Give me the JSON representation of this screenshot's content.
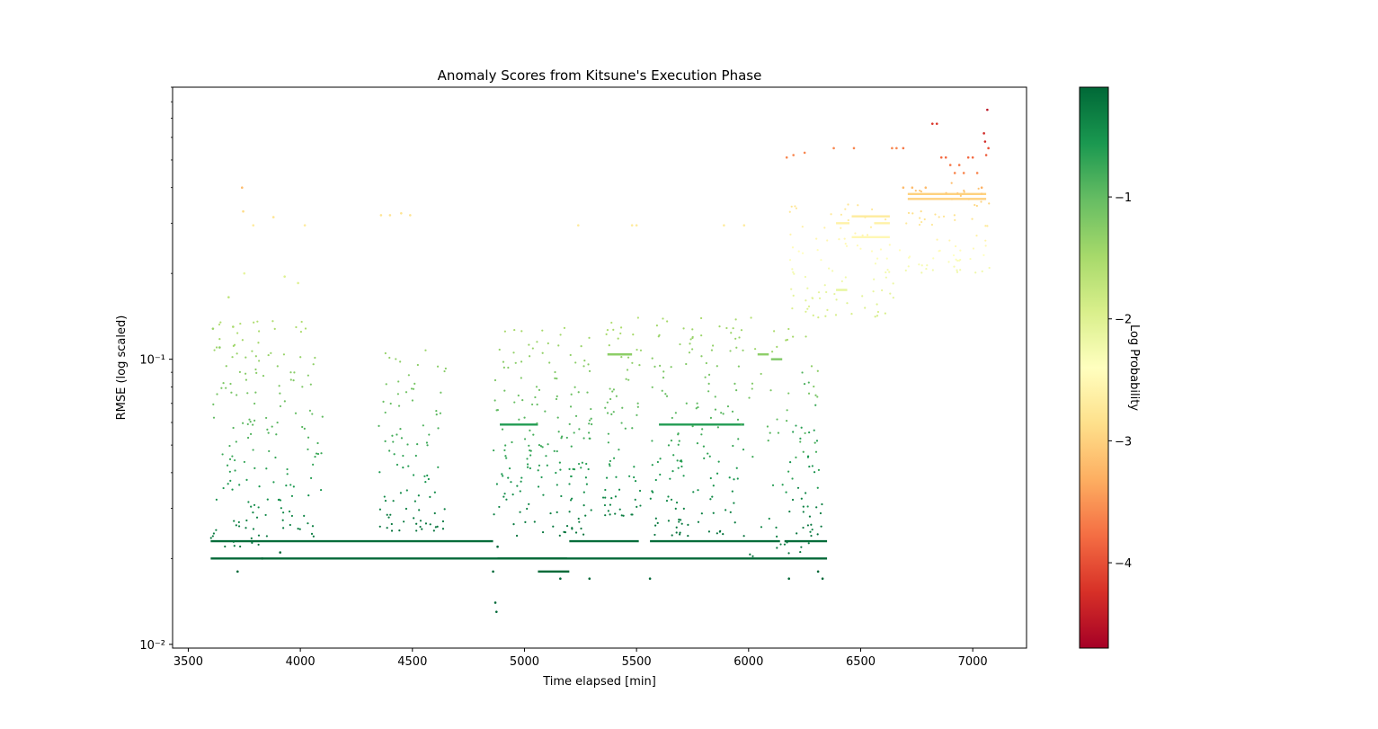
{
  "chart_data": {
    "type": "scatter",
    "title": "Anomaly Scores from Kitsune's Execution Phase",
    "xlabel": "Time elapsed [min]",
    "ylabel": "RMSE (log scaled)",
    "xlim": [
      3430,
      7240
    ],
    "ylim": [
      0.0097,
      0.9
    ],
    "yscale": "log",
    "x_ticks": [
      3500,
      4000,
      4500,
      5000,
      5500,
      6000,
      6500,
      7000
    ],
    "x_tick_labels": [
      "3500",
      "4000",
      "4500",
      "5000",
      "5500",
      "6000",
      "6500",
      "7000"
    ],
    "y_ticks": [
      0.01,
      0.1
    ],
    "y_tick_labels": [
      "10⁻²",
      "10⁻¹"
    ],
    "colorbar": {
      "label": "Log Probability",
      "colormap": "RdYlGn",
      "range": [
        -4.7,
        -0.1
      ],
      "ticks": [
        -1,
        -2,
        -3,
        -4
      ],
      "tick_labels": [
        "−1",
        "−2",
        "−3",
        "−4"
      ]
    },
    "segments": [
      {
        "x": [
          3600,
          4860
        ],
        "y": 0.023,
        "logp": -0.15
      },
      {
        "x": [
          3600,
          6350
        ],
        "y": 0.02,
        "logp": -0.1
      },
      {
        "x": [
          4880,
          5190
        ],
        "y": 0.02,
        "logp": -0.1
      },
      {
        "x": [
          5060,
          5200
        ],
        "y": 0.018,
        "logp": -0.12
      },
      {
        "x": [
          5200,
          5510
        ],
        "y": 0.023,
        "logp": -0.15
      },
      {
        "x": [
          5560,
          6140
        ],
        "y": 0.023,
        "logp": -0.15
      },
      {
        "x": [
          6160,
          6350
        ],
        "y": 0.023,
        "logp": -0.15
      },
      {
        "x": [
          4890,
          5060
        ],
        "y": 0.059,
        "logp": -0.6
      },
      {
        "x": [
          5600,
          5980
        ],
        "y": 0.059,
        "logp": -0.6
      },
      {
        "x": [
          5370,
          5480
        ],
        "y": 0.104,
        "logp": -1.3
      },
      {
        "x": [
          6040,
          6090
        ],
        "y": 0.104,
        "logp": -1.3
      },
      {
        "x": [
          6100,
          6150
        ],
        "y": 0.1,
        "logp": -1.2
      },
      {
        "x": [
          6390,
          6450
        ],
        "y": 0.3,
        "logp": -2.6
      },
      {
        "x": [
          6460,
          6630
        ],
        "y": 0.317,
        "logp": -2.7
      },
      {
        "x": [
          6460,
          6630
        ],
        "y": 0.268,
        "logp": -2.5
      },
      {
        "x": [
          6560,
          6630
        ],
        "y": 0.3,
        "logp": -2.6
      },
      {
        "x": [
          6390,
          6440
        ],
        "y": 0.175,
        "logp": -2.1
      },
      {
        "x": [
          6710,
          7060
        ],
        "y": 0.38,
        "logp": -3.0
      },
      {
        "x": [
          6710,
          7060
        ],
        "y": 0.365,
        "logp": -3.0
      }
    ],
    "clusters": [
      {
        "x": [
          3600,
          4100
        ],
        "y": [
          0.022,
          0.14
        ],
        "n": 170,
        "logp": [
          -0.2,
          -1.6
        ]
      },
      {
        "x": [
          4350,
          4650
        ],
        "y": [
          0.025,
          0.11
        ],
        "n": 90,
        "logp": [
          -0.2,
          -1.4
        ]
      },
      {
        "x": [
          4860,
          5300
        ],
        "y": [
          0.024,
          0.13
        ],
        "n": 170,
        "logp": [
          -0.2,
          -1.5
        ]
      },
      {
        "x": [
          5350,
          5520
        ],
        "y": [
          0.028,
          0.14
        ],
        "n": 70,
        "logp": [
          -0.3,
          -1.6
        ]
      },
      {
        "x": [
          5560,
          5980
        ],
        "y": [
          0.024,
          0.14
        ],
        "n": 150,
        "logp": [
          -0.2,
          -1.5
        ]
      },
      {
        "x": [
          6000,
          6320
        ],
        "y": [
          0.02,
          0.14
        ],
        "n": 60,
        "logp": [
          -0.2,
          -1.6
        ]
      },
      {
        "x": [
          6180,
          6330
        ],
        "y": [
          0.024,
          0.09
        ],
        "n": 35,
        "logp": [
          -0.2,
          -0.9
        ]
      },
      {
        "x": [
          6180,
          6680
        ],
        "y": [
          0.14,
          0.35
        ],
        "n": 90,
        "logp": [
          -1.9,
          -2.8
        ]
      },
      {
        "x": [
          6700,
          7080
        ],
        "y": [
          0.2,
          0.42
        ],
        "n": 70,
        "logp": [
          -2.2,
          -3.2
        ]
      }
    ],
    "points": [
      [
        3610,
        0.128,
        -1.4
      ],
      [
        3640,
        0.11,
        -1.3
      ],
      [
        3680,
        0.165,
        -1.7
      ],
      [
        3700,
        0.13,
        -1.5
      ],
      [
        3740,
        0.4,
        -3.2
      ],
      [
        3745,
        0.33,
        -2.9
      ],
      [
        3750,
        0.2,
        -2.1
      ],
      [
        3790,
        0.295,
        -2.7
      ],
      [
        3880,
        0.315,
        -2.8
      ],
      [
        3930,
        0.195,
        -2.0
      ],
      [
        3990,
        0.185,
        -2.0
      ],
      [
        4020,
        0.295,
        -2.7
      ],
      [
        4360,
        0.32,
        -2.8
      ],
      [
        4400,
        0.32,
        -2.8
      ],
      [
        4450,
        0.325,
        -2.8
      ],
      [
        4490,
        0.32,
        -2.8
      ],
      [
        5240,
        0.295,
        -2.7
      ],
      [
        5480,
        0.295,
        -2.7
      ],
      [
        5500,
        0.295,
        -2.7
      ],
      [
        5890,
        0.295,
        -2.7
      ],
      [
        5980,
        0.295,
        -2.7
      ],
      [
        6170,
        0.51,
        -3.6
      ],
      [
        6200,
        0.52,
        -3.6
      ],
      [
        6250,
        0.53,
        -3.6
      ],
      [
        6380,
        0.55,
        -3.6
      ],
      [
        6470,
        0.55,
        -3.6
      ],
      [
        6640,
        0.55,
        -3.6
      ],
      [
        6660,
        0.55,
        -3.6
      ],
      [
        6690,
        0.55,
        -3.7
      ],
      [
        6690,
        0.4,
        -3.2
      ],
      [
        6730,
        0.4,
        -3.2
      ],
      [
        6790,
        0.4,
        -3.2
      ],
      [
        6820,
        0.67,
        -4.2
      ],
      [
        6840,
        0.67,
        -4.2
      ],
      [
        6860,
        0.51,
        -3.8
      ],
      [
        6880,
        0.51,
        -3.8
      ],
      [
        6900,
        0.48,
        -3.7
      ],
      [
        6920,
        0.45,
        -3.6
      ],
      [
        6940,
        0.48,
        -3.7
      ],
      [
        6960,
        0.45,
        -3.6
      ],
      [
        6980,
        0.51,
        -3.8
      ],
      [
        7000,
        0.51,
        -3.8
      ],
      [
        7020,
        0.45,
        -3.6
      ],
      [
        7040,
        0.4,
        -3.3
      ],
      [
        7050,
        0.62,
        -4.3
      ],
      [
        7055,
        0.58,
        -4.3
      ],
      [
        7060,
        0.52,
        -3.9
      ],
      [
        7065,
        0.75,
        -4.5
      ],
      [
        7070,
        0.55,
        -4.0
      ],
      [
        4870,
        0.014,
        -0.1
      ],
      [
        4875,
        0.013,
        -0.1
      ],
      [
        5160,
        0.017,
        -0.1
      ],
      [
        5290,
        0.017,
        -0.1
      ],
      [
        5560,
        0.017,
        -0.1
      ],
      [
        6180,
        0.017,
        -0.1
      ],
      [
        6330,
        0.017,
        -0.1
      ],
      [
        3720,
        0.018,
        -0.1
      ],
      [
        4860,
        0.018,
        -0.1
      ],
      [
        6310,
        0.018,
        -0.1
      ],
      [
        3830,
        0.02,
        -0.1
      ],
      [
        3910,
        0.021,
        -0.1
      ],
      [
        4880,
        0.022,
        -0.1
      ]
    ]
  }
}
